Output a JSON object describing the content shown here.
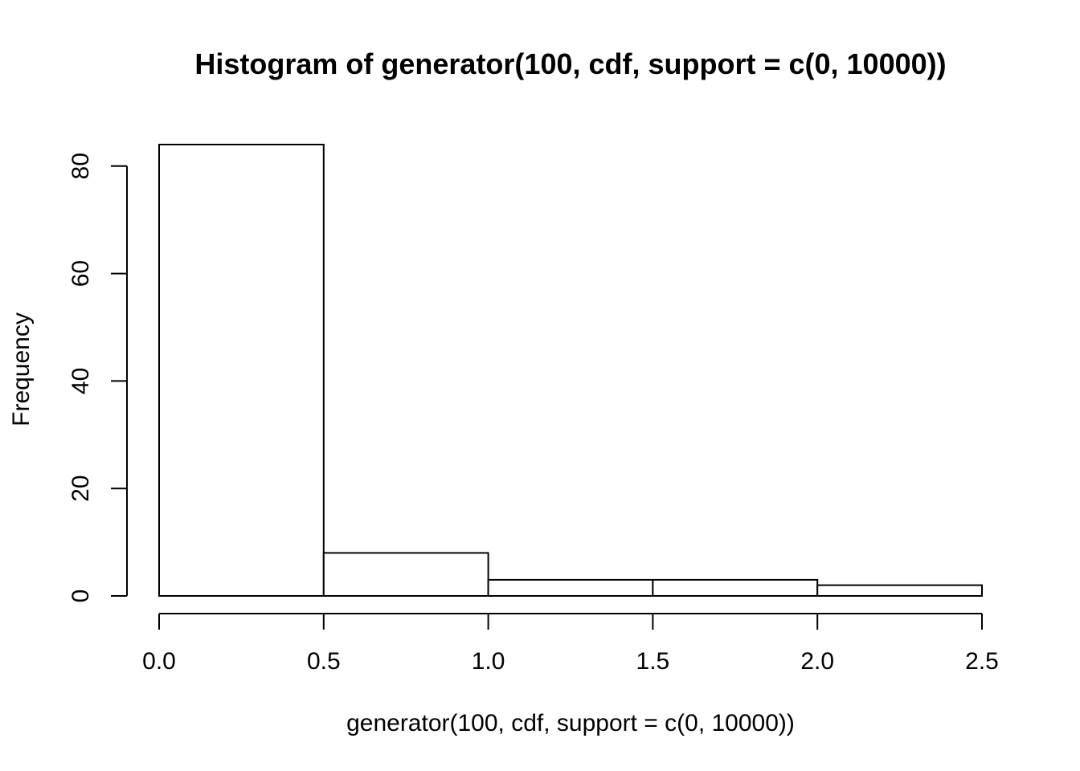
{
  "chart_data": {
    "type": "bar",
    "title": "Histogram of generator(100, cdf, support = c(0, 10000))",
    "xlabel": "generator(100, cdf, support = c(0, 10000))",
    "ylabel": "Frequency",
    "bins": [
      {
        "x0": 0.0,
        "x1": 0.5,
        "count": 84
      },
      {
        "x0": 0.5,
        "x1": 1.0,
        "count": 8
      },
      {
        "x0": 1.0,
        "x1": 1.5,
        "count": 3
      },
      {
        "x0": 1.5,
        "x1": 2.0,
        "count": 3
      },
      {
        "x0": 2.0,
        "x1": 2.5,
        "count": 2
      }
    ],
    "xlim": [
      0,
      2.5
    ],
    "ylim": [
      0,
      84
    ],
    "x_ticks": [
      "0.0",
      "0.5",
      "1.0",
      "1.5",
      "2.0",
      "2.5"
    ],
    "y_ticks": [
      "0",
      "20",
      "40",
      "60",
      "80"
    ],
    "grid": false,
    "legend": "none",
    "colors": {
      "bar_fill": "#ffffff",
      "bar_stroke": "#000000"
    }
  }
}
